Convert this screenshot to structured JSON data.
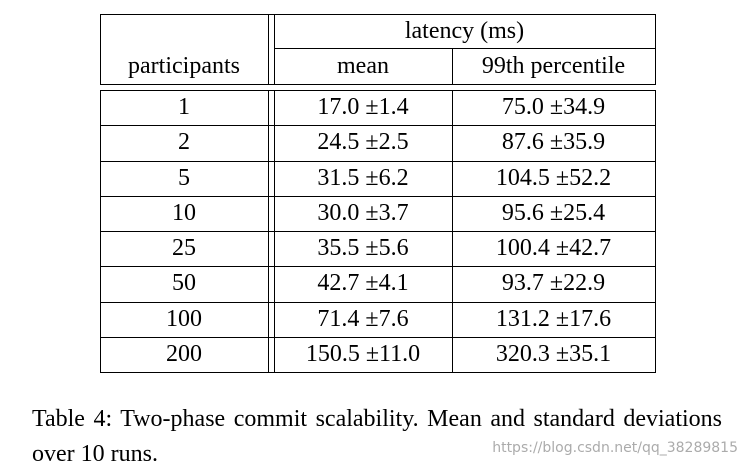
{
  "table": {
    "group_header": "latency (ms)",
    "columns": [
      "participants",
      "mean",
      "99th percentile"
    ],
    "rows": [
      [
        "1",
        "17.0 ±1.4",
        "75.0 ±34.9"
      ],
      [
        "2",
        "24.5 ±2.5",
        "87.6 ±35.9"
      ],
      [
        "5",
        "31.5 ±6.2",
        "104.5 ±52.2"
      ],
      [
        "10",
        "30.0 ±3.7",
        "95.6 ±25.4"
      ],
      [
        "25",
        "35.5 ±5.6",
        "100.4 ±42.7"
      ],
      [
        "50",
        "42.7 ±4.1",
        "93.7 ±22.9"
      ],
      [
        "100",
        "71.4 ±7.6",
        "131.2 ±17.6"
      ],
      [
        "200",
        "150.5 ±11.0",
        "320.3 ±35.1"
      ]
    ]
  },
  "caption": "Table 4: Two-phase commit scalability. Mean and standard deviations over 10 runs.",
  "watermark": "https://blog.csdn.net/qq_38289815"
}
